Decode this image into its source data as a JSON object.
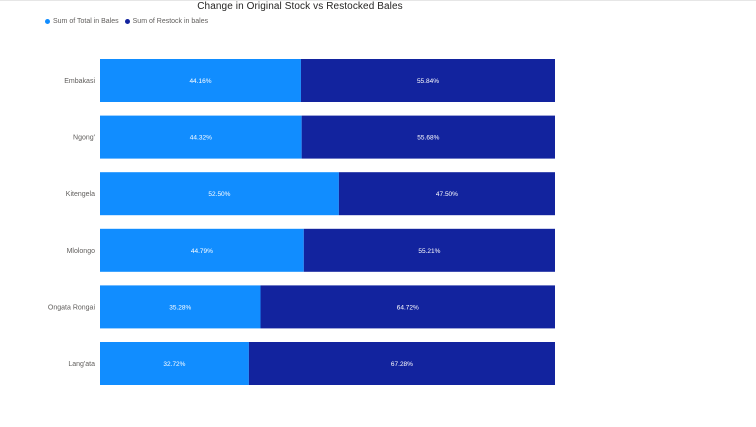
{
  "colors": {
    "total": "#118dff",
    "restock": "#12239e"
  },
  "chart_data": {
    "type": "bar",
    "orientation": "horizontal",
    "stacked": "100%",
    "title": "Change in Original Stock vs Restocked Bales",
    "categories": [
      "Embakasi",
      "Ngong'",
      "Kitengela",
      "Mlolongo",
      "Ongata Rongai",
      "Lang'ata"
    ],
    "series": [
      {
        "name": "Sum of Total in Bales",
        "values": [
          44.16,
          44.32,
          52.5,
          44.79,
          35.28,
          32.72
        ],
        "labels": [
          "44.16%",
          "44.32%",
          "52.50%",
          "44.79%",
          "35.28%",
          "32.72%"
        ]
      },
      {
        "name": "Sum of Restock in bales",
        "values": [
          55.84,
          55.68,
          47.5,
          55.21,
          64.72,
          67.28
        ],
        "labels": [
          "55.84%",
          "55.68%",
          "47.50%",
          "55.21%",
          "64.72%",
          "67.28%"
        ]
      }
    ],
    "legend_position": "top-left",
    "grid": false
  }
}
